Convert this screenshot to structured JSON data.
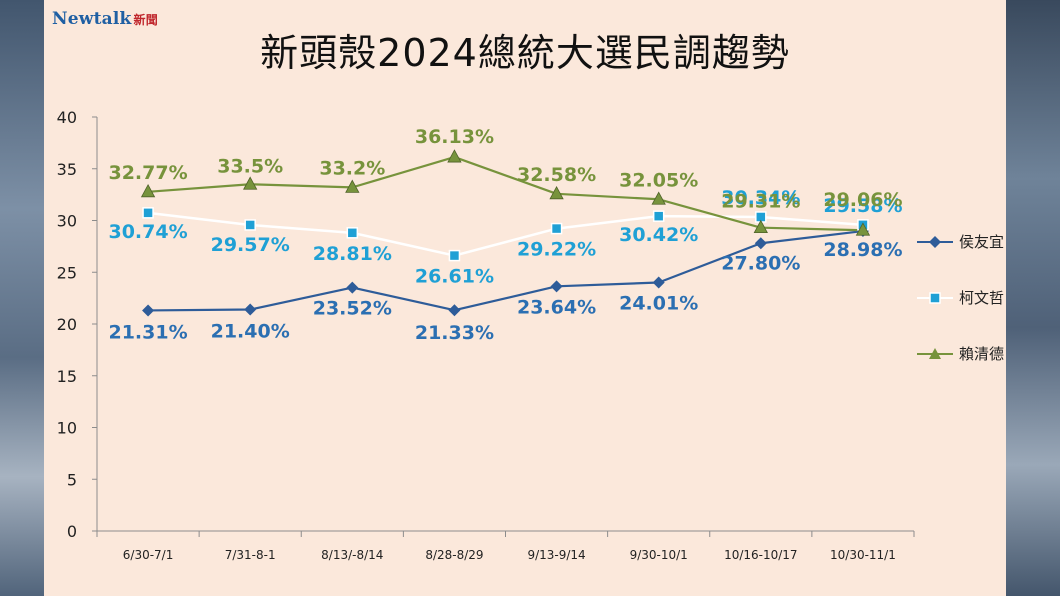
{
  "brand": {
    "logo": "Newtalk",
    "logo_sub": "新聞"
  },
  "colors": {
    "background": "#fbe8db",
    "hou": "#2e5c99",
    "ko": "#1fa0d5",
    "lai": "#77933c",
    "axis": "#8c8c8c"
  },
  "chart_data": {
    "type": "line",
    "title": "新頭殼2024總統大選民調趨勢",
    "xlabel": "",
    "ylabel": "",
    "ylim": [
      0,
      40
    ],
    "yticks": [
      "0",
      "5",
      "10",
      "15",
      "20",
      "25",
      "30",
      "35",
      "40"
    ],
    "categories": [
      "6/30-7/1",
      "7/31-8-1",
      "8/13/-8/14",
      "8/28-8/29",
      "9/13-9/14",
      "9/30-10/1",
      "10/16-10/17",
      "10/30-11/1"
    ],
    "grid": false,
    "legend_position": "right",
    "series": [
      {
        "name": "侯友宜",
        "marker": "diamond",
        "values": [
          21.31,
          21.4,
          23.52,
          21.33,
          23.64,
          24.01,
          27.8,
          28.98
        ],
        "labels": [
          "21.31%",
          "21.40%",
          "23.52%",
          "21.33%",
          "23.64%",
          "24.01%",
          "27.80%",
          "28.98%"
        ]
      },
      {
        "name": "柯文哲",
        "marker": "square",
        "values": [
          30.74,
          29.57,
          28.81,
          26.61,
          29.22,
          30.42,
          30.34,
          29.58
        ],
        "labels": [
          "30.74%",
          "29.57%",
          "28.81%",
          "26.61%",
          "29.22%",
          "30.42%",
          "30.34%",
          "29.58%"
        ]
      },
      {
        "name": "賴清德",
        "marker": "triangle",
        "values": [
          32.77,
          33.5,
          33.2,
          36.13,
          32.58,
          32.05,
          29.31,
          29.06
        ],
        "labels": [
          "32.77%",
          "33.5%",
          "33.2%",
          "36.13%",
          "32.58%",
          "32.05%",
          "29.31%",
          "29.06%"
        ]
      }
    ]
  }
}
